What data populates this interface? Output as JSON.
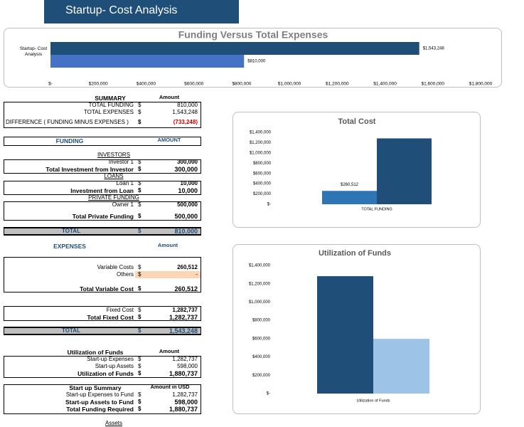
{
  "header": {
    "title": "Startup- Cost Analysis"
  },
  "chart_data": [
    {
      "type": "bar",
      "orientation": "horizontal",
      "title": "Funding Versus Total Expenses",
      "categories": [
        "Startup- Cost Analysis"
      ],
      "series": [
        {
          "color": "#1f4e79",
          "values": [
            1543248
          ],
          "value_labels": [
            "$1,543,248"
          ]
        },
        {
          "color": "#4472c4",
          "values": [
            810000
          ],
          "value_labels": [
            "$810,000"
          ]
        }
      ],
      "xlim": [
        0,
        1800000
      ],
      "xticks": [
        {
          "value": 0,
          "label": "$-"
        },
        {
          "value": 200000,
          "label": "$200,000"
        },
        {
          "value": 400000,
          "label": "$400,000"
        },
        {
          "value": 600000,
          "label": "$600,000"
        },
        {
          "value": 800000,
          "label": "$800,000"
        },
        {
          "value": 1000000,
          "label": "$1,000,000"
        },
        {
          "value": 1200000,
          "label": "$1,200,000"
        },
        {
          "value": 1400000,
          "label": "$1,400,000"
        },
        {
          "value": 1600000,
          "label": "$1,600,000"
        },
        {
          "value": 1800000,
          "label": "$1,800,000"
        }
      ]
    },
    {
      "type": "bar",
      "orientation": "vertical",
      "title": "Total Cost",
      "categories": [
        "TOTAL FUNDING"
      ],
      "series": [
        {
          "color": "#2e75b6",
          "values": [
            260512
          ],
          "value_labels": [
            "$260,512"
          ]
        },
        {
          "color": "#1f4e79",
          "values": [
            1282737
          ],
          "value_labels": [
            null
          ]
        }
      ],
      "ylim": [
        0,
        1400000
      ],
      "yticks": [
        {
          "value": 0,
          "label": "$-"
        },
        {
          "value": 200000,
          "label": "$200,000"
        },
        {
          "value": 400000,
          "label": "$400,000"
        },
        {
          "value": 600000,
          "label": "$600,000"
        },
        {
          "value": 800000,
          "label": "$800,000"
        },
        {
          "value": 1000000,
          "label": "$1,000,000"
        },
        {
          "value": 1200000,
          "label": "$1,200,000"
        },
        {
          "value": 1400000,
          "label": "$1,400,000"
        }
      ]
    },
    {
      "type": "bar",
      "orientation": "vertical",
      "title": "Utilization of Funds",
      "categories": [
        "Utilization of Funds"
      ],
      "series": [
        {
          "color": "#1f4e79",
          "values": [
            1282737
          ]
        },
        {
          "color": "#9dc3e6",
          "values": [
            598000
          ]
        }
      ],
      "ylim": [
        0,
        1400000
      ],
      "yticks": [
        {
          "value": 0,
          "label": "$-"
        },
        {
          "value": 200000,
          "label": "$200,000"
        },
        {
          "value": 400000,
          "label": "$400,000"
        },
        {
          "value": 600000,
          "label": "$600,000"
        },
        {
          "value": 800000,
          "label": "$800,000"
        },
        {
          "value": 1000000,
          "label": "$1,000,000"
        },
        {
          "value": 1200000,
          "label": "$1,200,000"
        },
        {
          "value": 1400000,
          "label": "$1,400,000"
        }
      ]
    }
  ],
  "tables": [
    {
      "header": [
        "SUMMARY",
        "Amount"
      ],
      "rows": [
        [
          "TOTAL FUNDING",
          "$",
          "810,000"
        ],
        [
          "TOTAL EXPENSES",
          "$",
          "1,543,248"
        ],
        [
          "DIFFERENCE ( FUNDING MINUS EXPENSES )",
          "$",
          "(733,248)"
        ]
      ]
    },
    {
      "header": [
        "FUNDING",
        "AMOUNT"
      ],
      "rows": [
        [
          "INVESTORS"
        ],
        [
          "Investor 1",
          "$",
          "300,000"
        ],
        [
          "Total Investment from Investor",
          "$",
          "300,000"
        ],
        [
          "LOANS"
        ],
        [
          "Loan 1",
          "$",
          "10,000"
        ],
        [
          "Investment from Loan",
          "$",
          "10,000"
        ],
        [
          "PRIVATE FUNDING"
        ],
        [
          "Owner 1",
          "$",
          "500,000"
        ],
        [
          "Total Private Funding",
          "$",
          "500,000"
        ],
        [
          "TOTAL",
          "$",
          "810,000"
        ]
      ]
    },
    {
      "header": [
        "EXPENSES",
        "Amount"
      ],
      "rows": [
        [
          "Variable Costs",
          "$",
          "260,512"
        ],
        [
          "Others",
          "$",
          "-"
        ],
        [
          "Total Variable Cost",
          "$",
          "260,512"
        ],
        [
          "Fixed Cost",
          "$",
          "1,282,737"
        ],
        [
          "Total Fixed Cost",
          "$",
          "1,282,737"
        ],
        [
          "TOTAL",
          "$",
          "1,543,248"
        ]
      ]
    },
    {
      "header": [
        "Utilization of Funds",
        "Amount"
      ],
      "rows": [
        [
          "Start-up Expenses",
          "$",
          "1,282,737"
        ],
        [
          "Start-up Assets",
          "$",
          "598,000"
        ],
        [
          "Utilization of Funds",
          "$",
          "1,880,737"
        ]
      ]
    },
    {
      "header": [
        "Start up Summary",
        "Amount in USD"
      ],
      "rows": [
        [
          "Start-up Expenses to Fund",
          "$",
          "1,282,737"
        ],
        [
          "Start-up Assets to Fund",
          "$",
          "598,000"
        ],
        [
          "Total Funding Required",
          "$",
          "1,880,737"
        ],
        [
          "Assets"
        ]
      ]
    }
  ]
}
